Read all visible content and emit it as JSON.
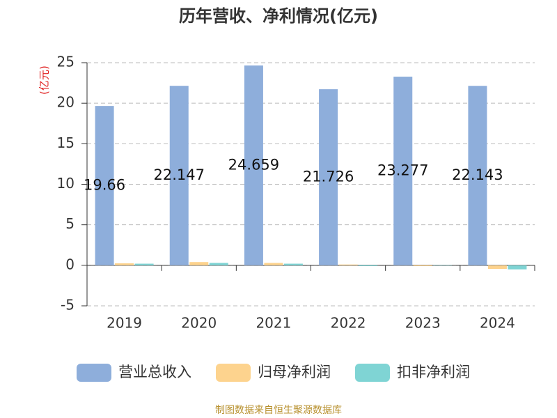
{
  "chart_data": {
    "type": "bar",
    "title": "历年营收、净利情况(亿元)",
    "y_label": "(亿元)",
    "source": "制图数据来自恒生聚源数据库",
    "categories": [
      "2019",
      "2020",
      "2021",
      "2022",
      "2023",
      "2024"
    ],
    "series": [
      {
        "name": "营业总收入",
        "color": "#8eaedb",
        "values": [
          19.66,
          22.147,
          24.659,
          21.726,
          23.277,
          22.143
        ],
        "labels": true
      },
      {
        "name": "归母净利润",
        "color": "#fdd38e",
        "values": [
          0.25,
          0.4,
          0.3,
          0.1,
          -0.1,
          -0.45
        ]
      },
      {
        "name": "扣非净利润",
        "color": "#7fd4d4",
        "values": [
          0.2,
          0.3,
          0.2,
          -0.1,
          0.05,
          -0.5
        ]
      }
    ],
    "ylim": [
      -5,
      25
    ],
    "yticks": [
      -5,
      0,
      5,
      10,
      15,
      20,
      25
    ],
    "grid": true,
    "legend": "bottom"
  }
}
